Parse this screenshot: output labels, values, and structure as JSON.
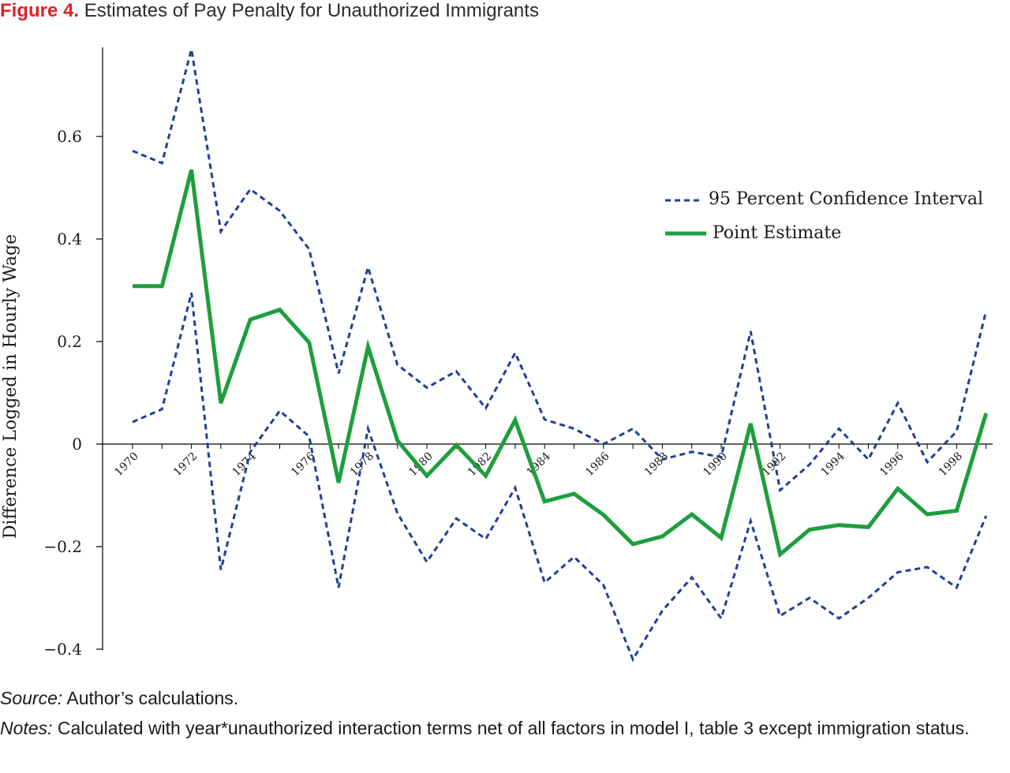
{
  "figure": {
    "number": "Figure 4.",
    "title": "Estimates of Pay Penalty for Unauthorized Immigrants"
  },
  "source": {
    "label": "Source:",
    "text": "Author’s calculations."
  },
  "notes": {
    "label": "Notes:",
    "text": "Calculated with year*unauthorized interaction terms net of all factors in model I, table 3 except immigration status."
  },
  "chart_data": {
    "type": "line",
    "title": "",
    "xlabel": "",
    "ylabel": "Difference Logged in Hourly Wage",
    "x": [
      1970,
      1971,
      1972,
      1973,
      1974,
      1975,
      1976,
      1977,
      1978,
      1979,
      1980,
      1981,
      1982,
      1983,
      1984,
      1985,
      1986,
      1987,
      1988,
      1989,
      1990,
      1991,
      1992,
      1993,
      1994,
      1995,
      1996,
      1997,
      1998,
      1999
    ],
    "xticks": [
      "1970",
      "1972",
      "1974",
      "1976",
      "1978",
      "1980",
      "1982",
      "1984",
      "1986",
      "1988",
      "1990",
      "1992",
      "1994",
      "1996",
      "1998"
    ],
    "yticks": [
      "0.6",
      "0.4",
      "0.2",
      "0",
      "−0.2",
      "−0.4"
    ],
    "ylim": [
      -0.4,
      0.75
    ],
    "grid": false,
    "legend_position": "top-right",
    "series": [
      {
        "name": "95 Percent Confidence Interval",
        "style": "dashed",
        "color": "#1f3f96",
        "upper": [
          0.572,
          0.548,
          0.77,
          0.415,
          0.497,
          0.455,
          0.38,
          0.138,
          0.345,
          0.155,
          0.11,
          0.142,
          0.07,
          0.178,
          0.048,
          0.03,
          0.0,
          0.03,
          -0.03,
          -0.015,
          -0.025,
          0.22,
          -0.09,
          -0.04,
          0.03,
          -0.03,
          0.08,
          -0.035,
          0.025,
          0.26
        ],
        "lower": [
          0.043,
          0.068,
          0.295,
          -0.245,
          -0.015,
          0.065,
          0.015,
          -0.28,
          0.03,
          -0.135,
          -0.23,
          -0.145,
          -0.185,
          -0.085,
          -0.27,
          -0.22,
          -0.275,
          -0.42,
          -0.325,
          -0.26,
          -0.34,
          -0.15,
          -0.335,
          -0.3,
          -0.34,
          -0.3,
          -0.25,
          -0.24,
          -0.28,
          -0.14
        ]
      },
      {
        "name": "Point Estimate",
        "style": "solid",
        "color": "#1e9e3e",
        "values": [
          0.308,
          0.308,
          0.535,
          0.08,
          0.243,
          0.262,
          0.198,
          -0.075,
          0.19,
          0.007,
          -0.062,
          -0.002,
          -0.062,
          0.047,
          -0.112,
          -0.097,
          -0.138,
          -0.195,
          -0.18,
          -0.137,
          -0.183,
          0.04,
          -0.215,
          -0.167,
          -0.158,
          -0.162,
          -0.087,
          -0.137,
          -0.13,
          0.06
        ]
      }
    ]
  }
}
